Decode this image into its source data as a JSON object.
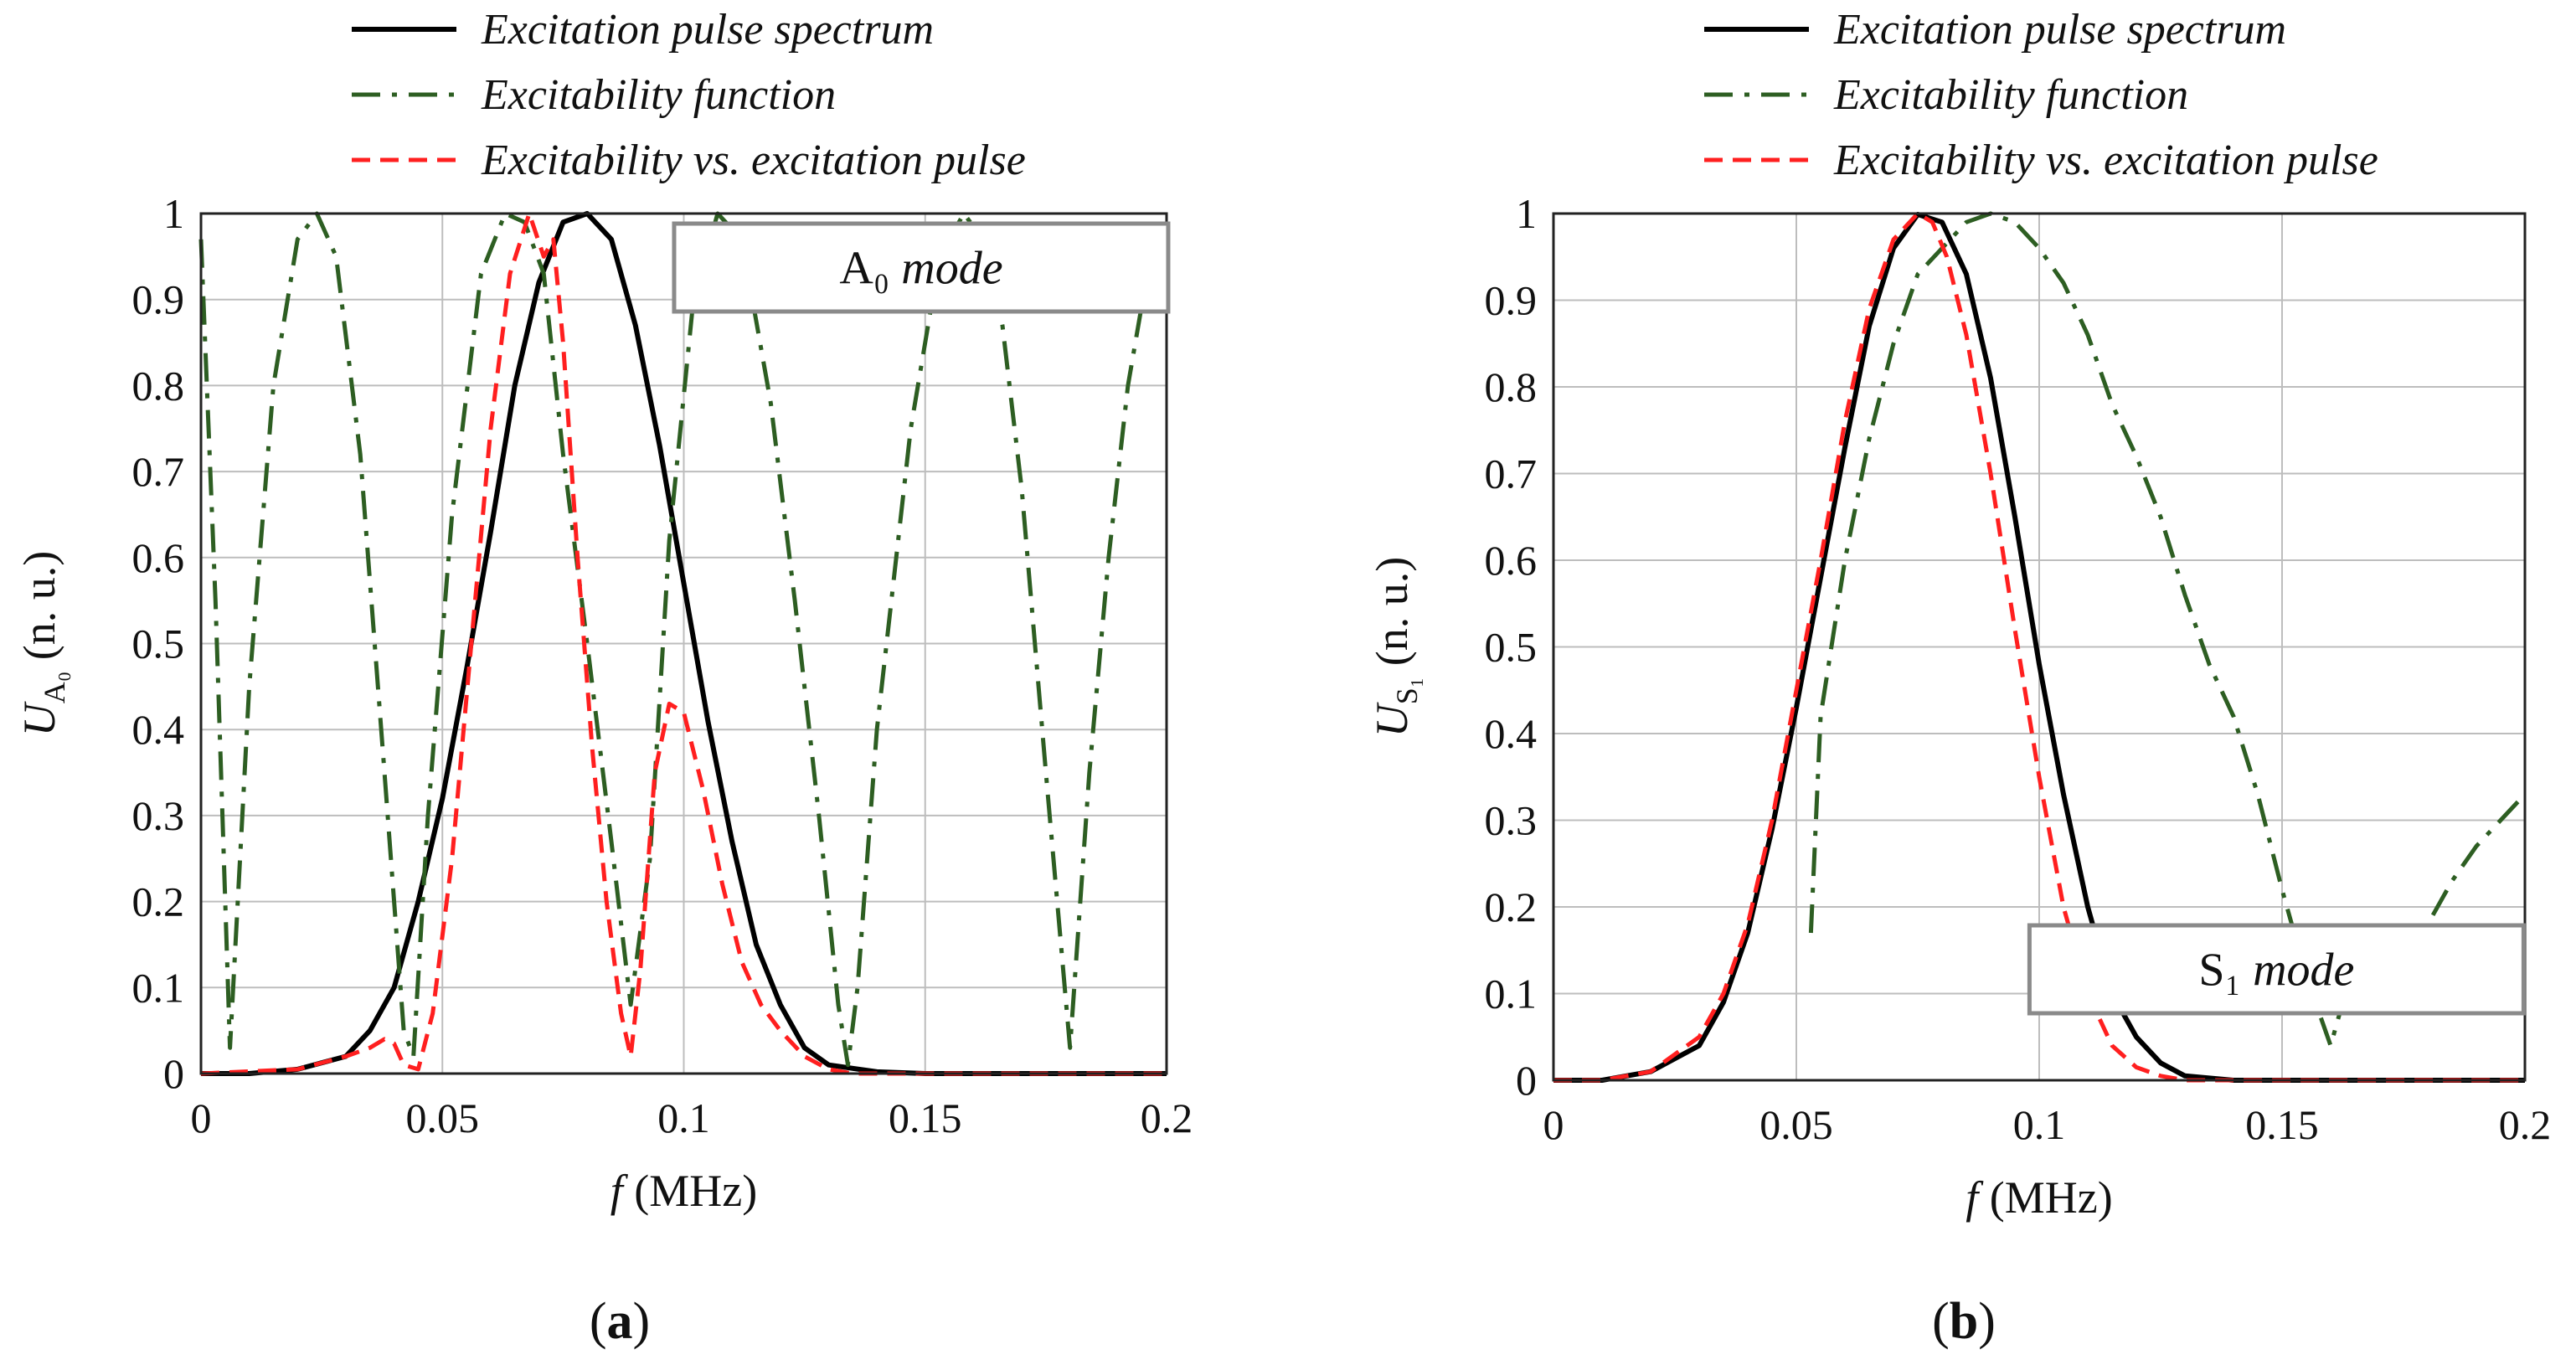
{
  "colors": {
    "spectrum": "#000000",
    "excitability": "#2d5e22",
    "product": "#ff1f1f",
    "grid": "#bdbdbd",
    "box_border": "#8a8a8a"
  },
  "chart_data": [
    {
      "type": "line",
      "panel_label_prefix": "(",
      "panel_label_letter": "a",
      "panel_label_suffix": ")",
      "mode_label_main": "A₀",
      "mode_label_italic": "mode",
      "mode_box_position": "top-right",
      "xlabel_italic": "f",
      "xlabel_rest": " (MHz)",
      "ylabel_main": "U",
      "ylabel_sub": "A₀",
      "ylabel_rest": " (n. u.)",
      "xlim": [
        0,
        0.2
      ],
      "ylim": [
        0,
        1
      ],
      "xticks": [
        "0",
        "0.05",
        "0.1",
        "0.15",
        "0.2"
      ],
      "yticks": [
        "0",
        "0.1",
        "0.2",
        "0.3",
        "0.4",
        "0.5",
        "0.6",
        "0.7",
        "0.8",
        "0.9",
        "1"
      ],
      "grid": true,
      "legend_position": "top, outside",
      "series": [
        {
          "name": "Excitation pulse spectrum",
          "style": "solid",
          "x": [
            0,
            0.01,
            0.02,
            0.03,
            0.035,
            0.04,
            0.045,
            0.05,
            0.055,
            0.06,
            0.065,
            0.07,
            0.075,
            0.08,
            0.085,
            0.09,
            0.095,
            0.1,
            0.105,
            0.11,
            0.115,
            0.12,
            0.125,
            0.13,
            0.14,
            0.15,
            0.2
          ],
          "y": [
            0,
            0,
            0.005,
            0.02,
            0.05,
            0.1,
            0.2,
            0.32,
            0.47,
            0.63,
            0.8,
            0.92,
            0.99,
            1.0,
            0.97,
            0.87,
            0.73,
            0.57,
            0.41,
            0.27,
            0.15,
            0.08,
            0.03,
            0.01,
            0.002,
            0,
            0
          ]
        },
        {
          "name": "Excitability function",
          "style": "dashdot",
          "x": [
            0,
            0.003,
            0.006,
            0.01,
            0.015,
            0.02,
            0.024,
            0.028,
            0.033,
            0.038,
            0.042,
            0.044,
            0.047,
            0.052,
            0.058,
            0.063,
            0.067,
            0.071,
            0.075,
            0.08,
            0.085,
            0.089,
            0.093,
            0.097,
            0.102,
            0.107,
            0.112,
            0.118,
            0.123,
            0.128,
            0.132,
            0.134,
            0.136,
            0.14,
            0.147,
            0.153,
            0.158,
            0.162,
            0.166,
            0.17,
            0.175,
            0.18,
            0.184,
            0.188,
            0.192,
            0.196,
            0.2
          ],
          "y": [
            0.97,
            0.55,
            0.03,
            0.45,
            0.8,
            0.97,
            1.0,
            0.95,
            0.72,
            0.35,
            0.05,
            0.02,
            0.3,
            0.65,
            0.93,
            1.0,
            0.99,
            0.93,
            0.72,
            0.5,
            0.27,
            0.08,
            0.25,
            0.62,
            0.9,
            1.0,
            0.97,
            0.78,
            0.55,
            0.3,
            0.08,
            0.01,
            0.1,
            0.4,
            0.75,
            0.95,
            1.0,
            0.97,
            0.87,
            0.68,
            0.35,
            0.03,
            0.35,
            0.6,
            0.8,
            0.93,
            0.96
          ]
        },
        {
          "name": "Excitability vs. excitation pulse",
          "style": "dashed",
          "x": [
            0,
            0.02,
            0.03,
            0.035,
            0.038,
            0.04,
            0.042,
            0.045,
            0.048,
            0.052,
            0.056,
            0.06,
            0.064,
            0.068,
            0.071,
            0.073,
            0.075,
            0.078,
            0.081,
            0.084,
            0.087,
            0.089,
            0.091,
            0.094,
            0.097,
            0.1,
            0.104,
            0.108,
            0.112,
            0.116,
            0.12,
            0.125,
            0.13,
            0.135,
            0.14,
            0.2
          ],
          "y": [
            0,
            0.005,
            0.02,
            0.03,
            0.04,
            0.035,
            0.01,
            0.005,
            0.07,
            0.25,
            0.5,
            0.75,
            0.93,
            1.0,
            0.95,
            0.97,
            0.85,
            0.6,
            0.38,
            0.2,
            0.07,
            0.02,
            0.12,
            0.35,
            0.43,
            0.42,
            0.33,
            0.22,
            0.13,
            0.08,
            0.05,
            0.02,
            0.005,
            0,
            0,
            0
          ]
        }
      ]
    },
    {
      "type": "line",
      "panel_label_prefix": "(",
      "panel_label_letter": "b",
      "panel_label_suffix": ")",
      "mode_label_main": "S₁",
      "mode_label_italic": "mode",
      "mode_box_position": "bottom-right",
      "xlabel_italic": "f",
      "xlabel_rest": " (MHz)",
      "ylabel_main": "U",
      "ylabel_sub": "S₁",
      "ylabel_rest": " (n. u.)",
      "xlim": [
        0,
        0.2
      ],
      "ylim": [
        0,
        1
      ],
      "xticks": [
        "0",
        "0.05",
        "0.1",
        "0.15",
        "0.2"
      ],
      "yticks": [
        "0",
        "0.1",
        "0.2",
        "0.3",
        "0.4",
        "0.5",
        "0.6",
        "0.7",
        "0.8",
        "0.9",
        "1"
      ],
      "grid": true,
      "legend_position": "top, outside",
      "series": [
        {
          "name": "Excitation pulse spectrum",
          "style": "solid",
          "x": [
            0,
            0.01,
            0.02,
            0.03,
            0.035,
            0.04,
            0.045,
            0.05,
            0.055,
            0.06,
            0.065,
            0.07,
            0.075,
            0.08,
            0.085,
            0.09,
            0.095,
            0.1,
            0.105,
            0.11,
            0.115,
            0.12,
            0.125,
            0.13,
            0.14,
            0.2
          ],
          "y": [
            0,
            0,
            0.01,
            0.04,
            0.09,
            0.17,
            0.29,
            0.43,
            0.58,
            0.73,
            0.87,
            0.96,
            0.999,
            0.99,
            0.93,
            0.81,
            0.65,
            0.48,
            0.33,
            0.2,
            0.1,
            0.05,
            0.02,
            0.005,
            0,
            0
          ]
        },
        {
          "name": "Excitability function",
          "style": "dashdot",
          "x": [
            0.053,
            0.055,
            0.06,
            0.065,
            0.07,
            0.075,
            0.08,
            0.085,
            0.09,
            0.095,
            0.1,
            0.105,
            0.11,
            0.115,
            0.12,
            0.125,
            0.13,
            0.135,
            0.14,
            0.145,
            0.15,
            0.155,
            0.16,
            0.163,
            0.166,
            0.17,
            0.175,
            0.18,
            0.185,
            0.19,
            0.195,
            0.2
          ],
          "y": [
            0.17,
            0.42,
            0.6,
            0.74,
            0.85,
            0.93,
            0.96,
            0.99,
            1.0,
            0.99,
            0.96,
            0.92,
            0.86,
            0.78,
            0.72,
            0.65,
            0.56,
            0.48,
            0.42,
            0.33,
            0.22,
            0.12,
            0.04,
            0.1,
            0.08,
            0.1,
            0.13,
            0.18,
            0.23,
            0.27,
            0.3,
            0.33
          ]
        },
        {
          "name": "Excitability vs. excitation pulse",
          "style": "dashed",
          "x": [
            0,
            0.01,
            0.02,
            0.03,
            0.035,
            0.04,
            0.045,
            0.05,
            0.055,
            0.06,
            0.065,
            0.07,
            0.075,
            0.078,
            0.081,
            0.085,
            0.09,
            0.095,
            0.1,
            0.105,
            0.11,
            0.115,
            0.12,
            0.125,
            0.13,
            0.14,
            0.2
          ],
          "y": [
            0,
            0,
            0.01,
            0.05,
            0.1,
            0.18,
            0.3,
            0.45,
            0.6,
            0.76,
            0.89,
            0.97,
            1.0,
            0.99,
            0.95,
            0.86,
            0.7,
            0.52,
            0.35,
            0.2,
            0.1,
            0.04,
            0.015,
            0.005,
            0,
            0,
            0
          ]
        }
      ]
    }
  ]
}
